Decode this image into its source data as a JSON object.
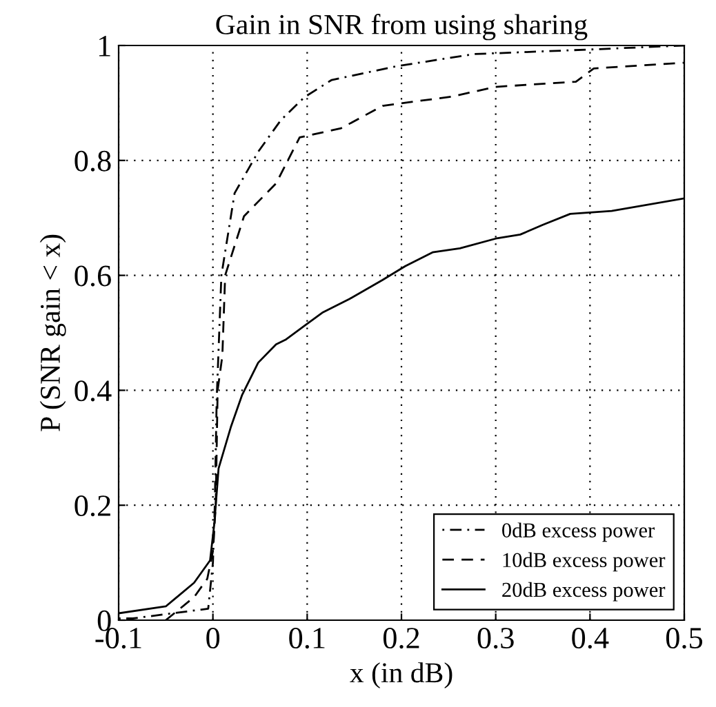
{
  "chart_data": {
    "type": "line",
    "title": "Gain in SNR from using sharing",
    "xlabel": "x (in dB)",
    "ylabel": "P (SNR gain < x)",
    "xlim": [
      -0.1,
      0.5
    ],
    "ylim": [
      0,
      1
    ],
    "xticks": [
      -0.1,
      0,
      0.1,
      0.2,
      0.3,
      0.4,
      0.5
    ],
    "yticks": [
      0,
      0.2,
      0.4,
      0.6,
      0.8,
      1
    ],
    "grid": true,
    "legend": "bottom right",
    "series": [
      {
        "name": "0dB excess power",
        "color": "#000000",
        "line_style": "dashdot",
        "x": [
          -0.1,
          -0.085,
          -0.005,
          0,
          0.002,
          0.004,
          0.009,
          0.023,
          0.048,
          0.072,
          0.097,
          0.126,
          0.195,
          0.277,
          0.4,
          0.5
        ],
        "values": [
          0.003,
          0.003,
          0.02,
          0.1,
          0.2,
          0.384,
          0.6,
          0.743,
          0.815,
          0.87,
          0.91,
          0.94,
          0.964,
          0.985,
          0.993,
          1.0
        ]
      },
      {
        "name": "10dB excess power",
        "color": "#000000",
        "line_style": "dashed",
        "x": [
          -0.05,
          -0.02,
          -0.006,
          0,
          0.003,
          0.005,
          0.01,
          0.013,
          0.033,
          0.067,
          0.092,
          0.136,
          0.18,
          0.253,
          0.3,
          0.385,
          0.404,
          0.5
        ],
        "values": [
          0,
          0.04,
          0.072,
          0.12,
          0.2,
          0.4,
          0.46,
          0.6,
          0.703,
          0.76,
          0.84,
          0.856,
          0.895,
          0.911,
          0.928,
          0.937,
          0.96,
          0.97
        ]
      },
      {
        "name": "20dB excess power",
        "color": "#000000",
        "line_style": "solid",
        "x": [
          -0.1,
          -0.05,
          -0.02,
          -0.003,
          0.0015,
          0.006,
          0.019,
          0.031,
          0.048,
          0.067,
          0.077,
          0.097,
          0.116,
          0.145,
          0.18,
          0.204,
          0.233,
          0.262,
          0.3,
          0.326,
          0.35,
          0.379,
          0.423,
          0.5
        ],
        "values": [
          0.012,
          0.024,
          0.065,
          0.104,
          0.168,
          0.264,
          0.336,
          0.392,
          0.448,
          0.48,
          0.488,
          0.512,
          0.535,
          0.559,
          0.592,
          0.616,
          0.64,
          0.647,
          0.664,
          0.671,
          0.688,
          0.707,
          0.712,
          0.734
        ]
      }
    ]
  }
}
